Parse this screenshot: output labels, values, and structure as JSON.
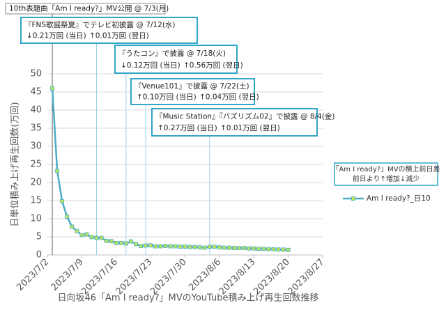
{
  "chart_data": {
    "type": "line",
    "x_label": "日向坂46「Am I ready?」MVのYouTube積み上げ再生回数推移",
    "y_label": "日単位積み上げ再生回数(万回)",
    "xlim": [
      "2023/7/2",
      "2023/8/27"
    ],
    "xticks": [
      "2023/7/2",
      "2023/7/9",
      "2023/7/16",
      "2023/7/23",
      "2023/7/30",
      "2023/8/6",
      "2023/8/13",
      "2023/8/20",
      "2023/8/27"
    ],
    "ylim": [
      0,
      50
    ],
    "yticks": [
      0,
      5,
      10,
      15,
      20,
      25,
      30,
      35,
      40,
      45,
      50
    ],
    "grid": true,
    "legend_title": [
      "「Am I ready?」MVの積上前日差",
      "前日より↑増加↓減少"
    ],
    "x": [
      "2023/7/3",
      "2023/7/4",
      "2023/7/5",
      "2023/7/6",
      "2023/7/7",
      "2023/7/8",
      "2023/7/9",
      "2023/7/10",
      "2023/7/11",
      "2023/7/12",
      "2023/7/13",
      "2023/7/14",
      "2023/7/15",
      "2023/7/16",
      "2023/7/17",
      "2023/7/18",
      "2023/7/19",
      "2023/7/20",
      "2023/7/21",
      "2023/7/22",
      "2023/7/23",
      "2023/7/24",
      "2023/7/25",
      "2023/7/26",
      "2023/7/27",
      "2023/7/28",
      "2023/7/29",
      "2023/7/30",
      "2023/7/31",
      "2023/8/1",
      "2023/8/2",
      "2023/8/3",
      "2023/8/4",
      "2023/8/5",
      "2023/8/6",
      "2023/8/7",
      "2023/8/8",
      "2023/8/9",
      "2023/8/10",
      "2023/8/11",
      "2023/8/12",
      "2023/8/13",
      "2023/8/14",
      "2023/8/15",
      "2023/8/16",
      "2023/8/17",
      "2023/8/18",
      "2023/8/19",
      "2023/8/20"
    ],
    "series": [
      {
        "name": "Am I ready?_日10",
        "color": "#4bacc6",
        "marker_color": "#b8e35a",
        "values": [
          46.0,
          23.2,
          14.8,
          10.6,
          7.8,
          6.6,
          5.5,
          5.7,
          4.91,
          4.7,
          4.71,
          3.9,
          3.8,
          3.3,
          3.3,
          3.18,
          3.74,
          3.0,
          2.5,
          2.6,
          2.64,
          2.4,
          2.4,
          2.5,
          2.4,
          2.4,
          2.3,
          2.3,
          2.2,
          2.2,
          2.1,
          2.0,
          2.27,
          2.28,
          2.1,
          2.0,
          2.0,
          1.9,
          1.9,
          1.9,
          1.8,
          1.8,
          1.7,
          1.7,
          1.6,
          1.6,
          1.5,
          1.5,
          1.4
        ]
      }
    ],
    "annotations": [
      {
        "x": "2023/7/3",
        "lines": [
          "10th表題曲「Am I ready?」MV公開 @ 7/3(月)"
        ]
      },
      {
        "x": "2023/7/12",
        "lines": [
          "『FNS歌謡祭夏』でテレビ初披露 @ 7/12(水)",
          "↓0.21万回 (当日)",
          "↑0.01万回 (翌日)"
        ]
      },
      {
        "x": "2023/7/18",
        "lines": [
          "『うたコン』で披露 @ 7/18(火)",
          "↓0.12万回 (当日)",
          "↑0.56万回 (翌日)"
        ]
      },
      {
        "x": "2023/7/22",
        "lines": [
          "『Venue101』で披露 @ 7/22(土)",
          "↑0.10万回 (当日)",
          "↑0.04万回 (翌日)"
        ]
      },
      {
        "x": "2023/8/4",
        "lines": [
          "『Music Station』『バズリズム02』で披露 @ 8/4(金)",
          "↑0.27万回 (当日)",
          "↑0.01万回 (翌日)"
        ]
      }
    ]
  }
}
